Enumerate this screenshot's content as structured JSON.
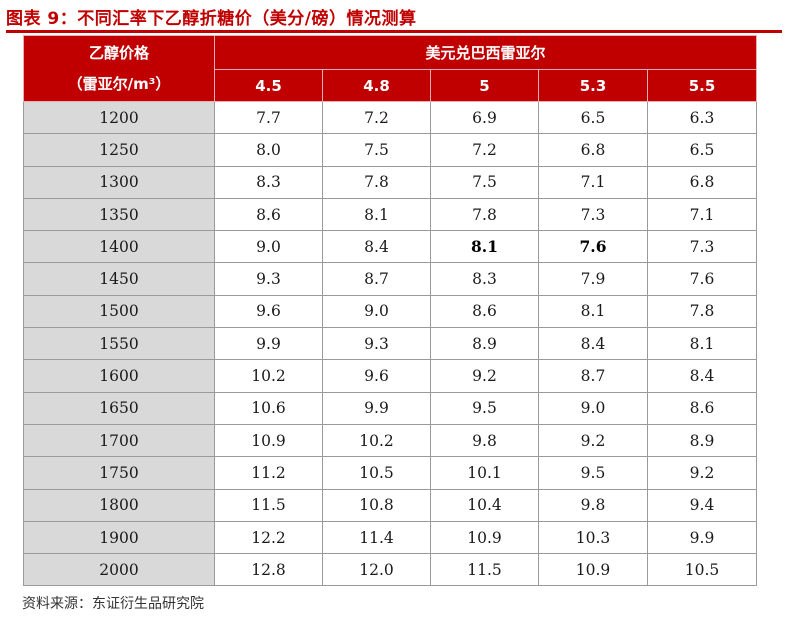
{
  "title": "图表 9：不同汇率下乙醇折糖价（美分/磅）情况测算",
  "table": {
    "row_header_line1": "乙醇价格",
    "row_header_line2": "（雷亚尔/m³）",
    "col_group_header": "美元兑巴西雷亚尔",
    "columns": [
      "4.5",
      "4.8",
      "5",
      "5.3",
      "5.5"
    ],
    "rows": [
      {
        "ethanol": "1200",
        "values": [
          "7.7",
          "7.2",
          "6.9",
          "6.5",
          "6.3"
        ]
      },
      {
        "ethanol": "1250",
        "values": [
          "8.0",
          "7.5",
          "7.2",
          "6.8",
          "6.5"
        ]
      },
      {
        "ethanol": "1300",
        "values": [
          "8.3",
          "7.8",
          "7.5",
          "7.1",
          "6.8"
        ]
      },
      {
        "ethanol": "1350",
        "values": [
          "8.6",
          "8.1",
          "7.8",
          "7.3",
          "7.1"
        ]
      },
      {
        "ethanol": "1400",
        "values": [
          "9.0",
          "8.4",
          "8.1",
          "7.6",
          "7.3"
        ]
      },
      {
        "ethanol": "1450",
        "values": [
          "9.3",
          "8.7",
          "8.3",
          "7.9",
          "7.6"
        ]
      },
      {
        "ethanol": "1500",
        "values": [
          "9.6",
          "9.0",
          "8.6",
          "8.1",
          "7.8"
        ]
      },
      {
        "ethanol": "1550",
        "values": [
          "9.9",
          "9.3",
          "8.9",
          "8.4",
          "8.1"
        ]
      },
      {
        "ethanol": "1600",
        "values": [
          "10.2",
          "9.6",
          "9.2",
          "8.7",
          "8.4"
        ]
      },
      {
        "ethanol": "1650",
        "values": [
          "10.6",
          "9.9",
          "9.5",
          "9.0",
          "8.6"
        ]
      },
      {
        "ethanol": "1700",
        "values": [
          "10.9",
          "10.2",
          "9.8",
          "9.2",
          "8.9"
        ]
      },
      {
        "ethanol": "1750",
        "values": [
          "11.2",
          "10.5",
          "10.1",
          "9.5",
          "9.2"
        ]
      },
      {
        "ethanol": "1800",
        "values": [
          "11.5",
          "10.8",
          "10.4",
          "9.8",
          "9.4"
        ]
      },
      {
        "ethanol": "1900",
        "values": [
          "12.2",
          "11.4",
          "10.9",
          "10.3",
          "9.9"
        ]
      },
      {
        "ethanol": "2000",
        "values": [
          "12.8",
          "12.0",
          "11.5",
          "10.9",
          "10.5"
        ]
      }
    ],
    "highlighted_cells": [
      {
        "row": 4,
        "col": 2
      },
      {
        "row": 4,
        "col": 3
      }
    ]
  },
  "source": "资料来源：东证衍生品研究院",
  "colors": {
    "accent": "#c00000",
    "row_label_bg": "#d9d9d9"
  }
}
